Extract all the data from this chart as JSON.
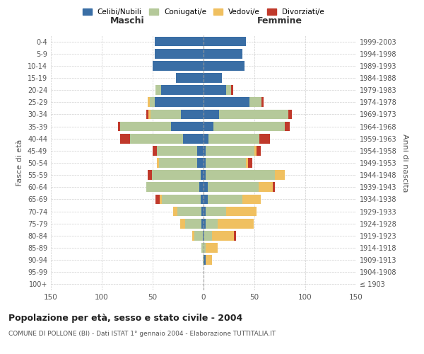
{
  "age_groups": [
    "100+",
    "95-99",
    "90-94",
    "85-89",
    "80-84",
    "75-79",
    "70-74",
    "65-69",
    "60-64",
    "55-59",
    "50-54",
    "45-49",
    "40-44",
    "35-39",
    "30-34",
    "25-29",
    "20-24",
    "15-19",
    "10-14",
    "5-9",
    "0-4"
  ],
  "birth_years": [
    "≤ 1903",
    "1904-1908",
    "1909-1913",
    "1914-1918",
    "1919-1923",
    "1924-1928",
    "1929-1933",
    "1934-1938",
    "1939-1943",
    "1944-1948",
    "1949-1953",
    "1954-1958",
    "1959-1963",
    "1964-1968",
    "1969-1973",
    "1974-1978",
    "1979-1983",
    "1984-1988",
    "1989-1993",
    "1994-1998",
    "1999-2003"
  ],
  "maschi": {
    "celibi": [
      0,
      0,
      0,
      0,
      1,
      2,
      2,
      3,
      4,
      3,
      6,
      6,
      20,
      32,
      22,
      48,
      42,
      27,
      50,
      48,
      48
    ],
    "coniugati": [
      0,
      0,
      1,
      2,
      8,
      16,
      24,
      38,
      52,
      48,
      38,
      40,
      52,
      50,
      30,
      5,
      5,
      0,
      0,
      0,
      0
    ],
    "vedovi": [
      0,
      0,
      0,
      0,
      2,
      5,
      4,
      2,
      0,
      0,
      2,
      0,
      0,
      0,
      2,
      2,
      0,
      0,
      0,
      0,
      0
    ],
    "divorziati": [
      0,
      0,
      0,
      0,
      0,
      0,
      0,
      4,
      0,
      4,
      0,
      4,
      10,
      2,
      2,
      0,
      0,
      0,
      0,
      0,
      0
    ]
  },
  "femmine": {
    "nubili": [
      0,
      0,
      2,
      0,
      0,
      2,
      2,
      4,
      4,
      2,
      2,
      2,
      5,
      10,
      15,
      45,
      22,
      18,
      40,
      38,
      42
    ],
    "coniugate": [
      0,
      0,
      0,
      2,
      8,
      12,
      20,
      34,
      50,
      68,
      40,
      48,
      50,
      70,
      68,
      12,
      5,
      0,
      0,
      0,
      0
    ],
    "vedove": [
      0,
      0,
      6,
      12,
      22,
      35,
      30,
      18,
      14,
      10,
      2,
      2,
      0,
      0,
      0,
      0,
      0,
      0,
      0,
      0,
      0
    ],
    "divorziate": [
      0,
      0,
      0,
      0,
      2,
      0,
      0,
      0,
      2,
      0,
      4,
      4,
      10,
      5,
      4,
      2,
      2,
      0,
      0,
      0,
      0
    ]
  },
  "colors": {
    "celibi_nubili": "#3a6ea5",
    "coniugati": "#b5c99a",
    "vedovi": "#f0c060",
    "divorziati": "#c0392b"
  },
  "xlim": 150,
  "title": "Popolazione per età, sesso e stato civile - 2004",
  "subtitle": "COMUNE DI POLLONE (BI) - Dati ISTAT 1° gennaio 2004 - Elaborazione TUTTITALIA.IT",
  "ylabel_left": "Fasce di età",
  "ylabel_right": "Anni di nascita",
  "xlabel_maschi": "Maschi",
  "xlabel_femmine": "Femmine"
}
